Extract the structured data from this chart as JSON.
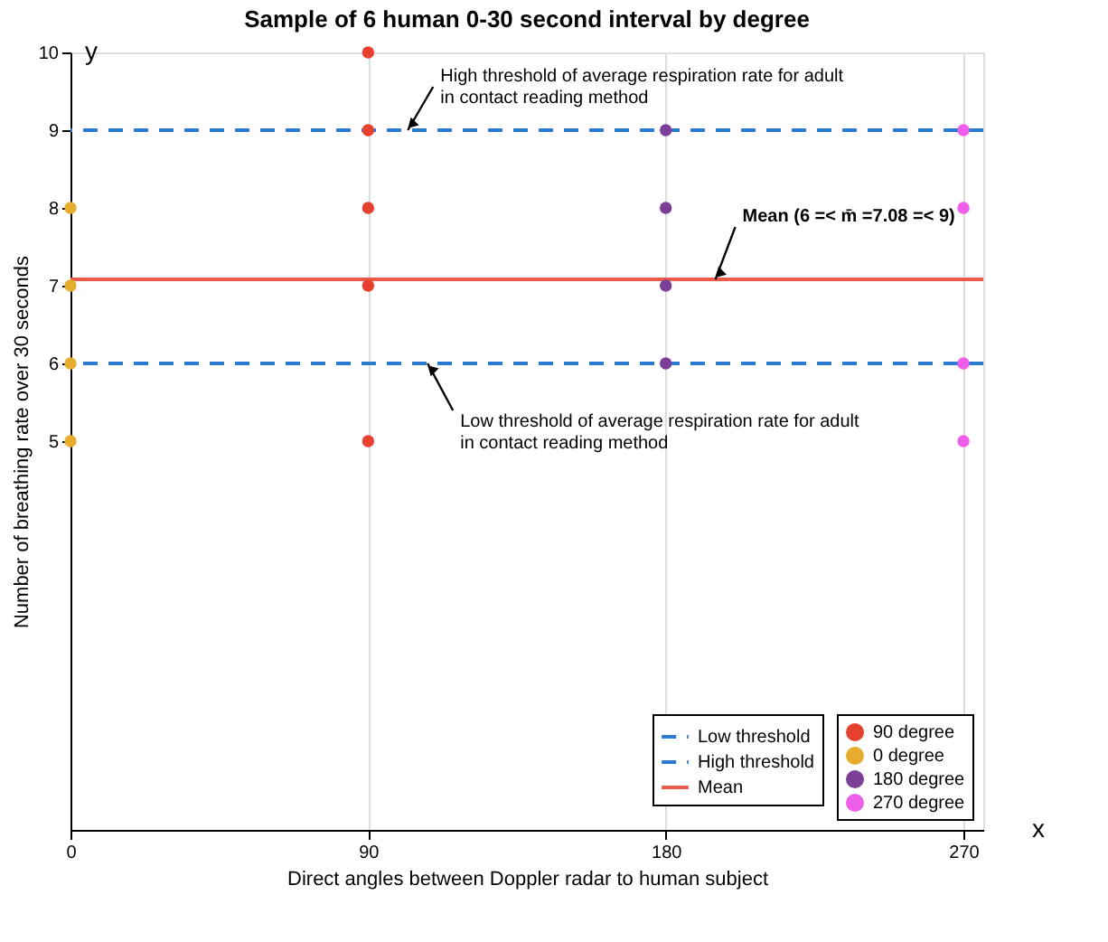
{
  "chart_data": {
    "type": "scatter",
    "title": "Sample of 6 human 0-30 second interval by degree",
    "xlabel": "Direct angles between Doppler radar to human subject",
    "ylabel": "Number of breathing rate over 30 seconds",
    "xlim": [
      0,
      276
    ],
    "xticks": [
      0,
      90,
      180,
      270
    ],
    "ylim": [
      0,
      10
    ],
    "yticks": [
      5,
      6,
      7,
      8,
      9,
      10
    ],
    "grid": "x",
    "legend": "bottom right",
    "marker": "circle",
    "series": [
      {
        "name": "90 degree",
        "color": "#e8402e",
        "x": [
          90,
          90,
          90,
          90,
          90
        ],
        "values": [
          5,
          7,
          8,
          9,
          10
        ]
      },
      {
        "name": "0 degree",
        "color": "#e6ac2e",
        "x": [
          0,
          0,
          0,
          0
        ],
        "values": [
          5,
          6,
          7,
          8
        ]
      },
      {
        "name": "180 degree",
        "color": "#7b3f98",
        "x": [
          180,
          180,
          180,
          180
        ],
        "values": [
          6,
          7,
          8,
          9
        ]
      },
      {
        "name": "270 degree",
        "color": "#ee5ee8",
        "x": [
          270,
          270,
          270,
          270
        ],
        "values": [
          5,
          6,
          8,
          9
        ]
      }
    ],
    "ref_lines": [
      {
        "axis": "y",
        "value": 6,
        "label": "Low threshold",
        "color": "#2b7bd0",
        "line_style": "dashed"
      },
      {
        "axis": "y",
        "value": 9,
        "label": "High threshold",
        "color": "#2b7bd0",
        "line_style": "dashed"
      },
      {
        "axis": "y",
        "value": 7.08,
        "label": "Mean",
        "color": "#ee5a4a",
        "line_style": "solid"
      }
    ],
    "annotations": [
      {
        "text": "High threshold of average respiration rate for adult\nin contact reading method",
        "x": 102,
        "y": 9
      },
      {
        "text": "Mean (6 =< m̄ =7.08 =< 9)",
        "x": 195,
        "y": 7.08
      },
      {
        "text": "Low threshold of average respiration rate for adult\nin contact reading method",
        "x": 108,
        "y": 6
      },
      "y",
      "x"
    ]
  }
}
